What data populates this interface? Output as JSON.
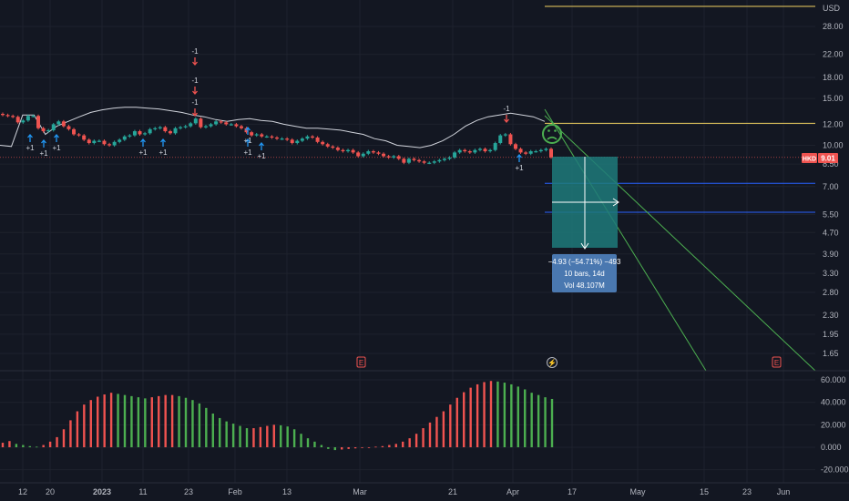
{
  "currency": "USD",
  "symbol_tag": "HKD",
  "last_price_label": "9.01",
  "measure": {
    "line1": "−4.93 (−54.71%) −493",
    "line2": "10 bars, 14d",
    "line3": "Vol 48.107M"
  },
  "event_icons": {
    "earnings": "E",
    "dividend": "⚡"
  },
  "colors": {
    "up": "#26a69a",
    "down": "#ef5350",
    "hist_up": "#4caf50",
    "hist_down": "#f05350",
    "measure_fill": "#1f7a7a",
    "measure_box": "#2962ff",
    "level_yellow": "#f0d060",
    "level_blue": "#2962ff",
    "trend_green": "#4caf50"
  },
  "chart_data": [
    {
      "type": "candlestick",
      "price_axis": {
        "scale": "log",
        "ticks": [
          28.0,
          22.0,
          18.0,
          15.0,
          12.0,
          10.0,
          8.5,
          7.0,
          5.5,
          4.7,
          3.9,
          3.3,
          2.8,
          2.3,
          1.95,
          1.65
        ],
        "tick_labels": [
          "28.00",
          "22.00",
          "18.00",
          "15.00",
          "12.00",
          "10.00",
          "8.50",
          "7.00",
          "5.50",
          "4.70",
          "3.90",
          "3.30",
          "2.80",
          "2.30",
          "1.95",
          "1.65"
        ]
      },
      "time_axis": {
        "labels": [
          "12",
          "20",
          "2023",
          "11",
          "23",
          "Feb",
          "13",
          "Mar",
          "21",
          "Apr",
          "17",
          "May",
          "15",
          "23",
          "Jun"
        ]
      },
      "candles_close": [
        13.0,
        12.9,
        12.8,
        12.2,
        12.4,
        12.9,
        12.9,
        11.6,
        11.3,
        11.4,
        12.0,
        12.3,
        11.8,
        11.5,
        11.0,
        10.9,
        10.5,
        10.2,
        10.4,
        10.4,
        10.1,
        10.0,
        10.3,
        10.5,
        10.8,
        10.9,
        11.3,
        11.0,
        11.1,
        11.5,
        11.6,
        11.7,
        11.3,
        11.1,
        11.6,
        11.7,
        11.8,
        12.1,
        12.6,
        11.7,
        11.8,
        12.0,
        12.3,
        12.2,
        12.0,
        12.0,
        11.8,
        11.6,
        11.2,
        10.9,
        11.0,
        10.8,
        10.8,
        10.7,
        10.6,
        10.6,
        10.5,
        10.2,
        10.4,
        10.6,
        10.8,
        10.7,
        10.3,
        10.1,
        9.9,
        9.8,
        9.6,
        9.5,
        9.6,
        9.4,
        9.1,
        9.3,
        9.5,
        9.4,
        9.3,
        9.1,
        9.0,
        9.1,
        8.9,
        8.6,
        8.9,
        8.8,
        8.7,
        8.6,
        8.6,
        8.7,
        8.8,
        8.9,
        9.0,
        9.4,
        9.6,
        9.5,
        9.4,
        9.6,
        9.7,
        9.5,
        9.6,
        10.2,
        10.9,
        11.0,
        10.1,
        9.7,
        9.4,
        9.3,
        9.5,
        9.5,
        9.6,
        9.7,
        9.01
      ],
      "envelope_line": [
        10.0,
        9.9,
        13.0,
        13.0,
        11.0,
        11.8,
        12.3,
        12.8,
        13.3,
        13.6,
        13.8,
        13.9,
        13.9,
        13.8,
        13.7,
        13.5,
        13.3,
        13.0,
        12.8,
        12.5,
        12.3,
        12.5,
        12.6,
        12.4,
        12.3,
        12.0,
        11.8,
        11.6,
        11.6,
        11.5,
        11.4,
        11.2,
        11.0,
        10.6,
        10.4,
        10.0,
        9.9,
        9.8,
        10.0,
        10.4,
        11.0,
        11.8,
        12.4,
        12.8,
        13.0,
        13.2,
        13.0,
        12.8,
        12.3
      ],
      "levels": [
        30.0,
        12.1,
        7.2,
        5.6
      ],
      "signals": [
        {
          "label": "+1",
          "dir": "up"
        },
        {
          "label": "+1",
          "dir": "up"
        },
        {
          "label": "+1",
          "dir": "up"
        },
        {
          "label": "+1",
          "dir": "up"
        },
        {
          "label": "+1",
          "dir": "up"
        },
        {
          "label": "+1",
          "dir": "up"
        },
        {
          "label": "-1",
          "dir": "down"
        },
        {
          "label": "-1",
          "dir": "down"
        },
        {
          "label": "-1",
          "dir": "down"
        },
        {
          "label": "+1",
          "dir": "up"
        },
        {
          "label": "+1",
          "dir": "up"
        },
        {
          "label": "-1",
          "dir": "down"
        },
        {
          "label": "+1",
          "dir": "up"
        }
      ]
    },
    {
      "type": "histogram",
      "y_axis": {
        "ticks": [
          60000,
          40000,
          20000,
          0,
          -20000
        ],
        "tick_labels": [
          "60.000",
          "40.000",
          "20.000",
          "0.000",
          "-20.000"
        ]
      },
      "values": [
        4000,
        5500,
        3000,
        2000,
        1000,
        500,
        2000,
        5000,
        9000,
        16000,
        24000,
        32000,
        38000,
        42000,
        45000,
        47000,
        48500,
        47500,
        46500,
        45500,
        44500,
        43500,
        44500,
        45500,
        46500,
        46500,
        45500,
        44000,
        42000,
        39000,
        35000,
        30000,
        26000,
        23000,
        21000,
        19000,
        17000,
        17000,
        18000,
        19000,
        20000,
        19500,
        18500,
        16000,
        12000,
        8000,
        5000,
        2000,
        -1500,
        -2500,
        -2000,
        -1500,
        -1000,
        -500,
        0,
        500,
        1000,
        2000,
        3000,
        5000,
        8000,
        12000,
        17000,
        22000,
        27000,
        32000,
        38000,
        44000,
        49000,
        53000,
        56000,
        58000,
        59000,
        58500,
        57500,
        56000,
        54000,
        51500,
        48500,
        46500,
        44500,
        43000
      ]
    }
  ]
}
